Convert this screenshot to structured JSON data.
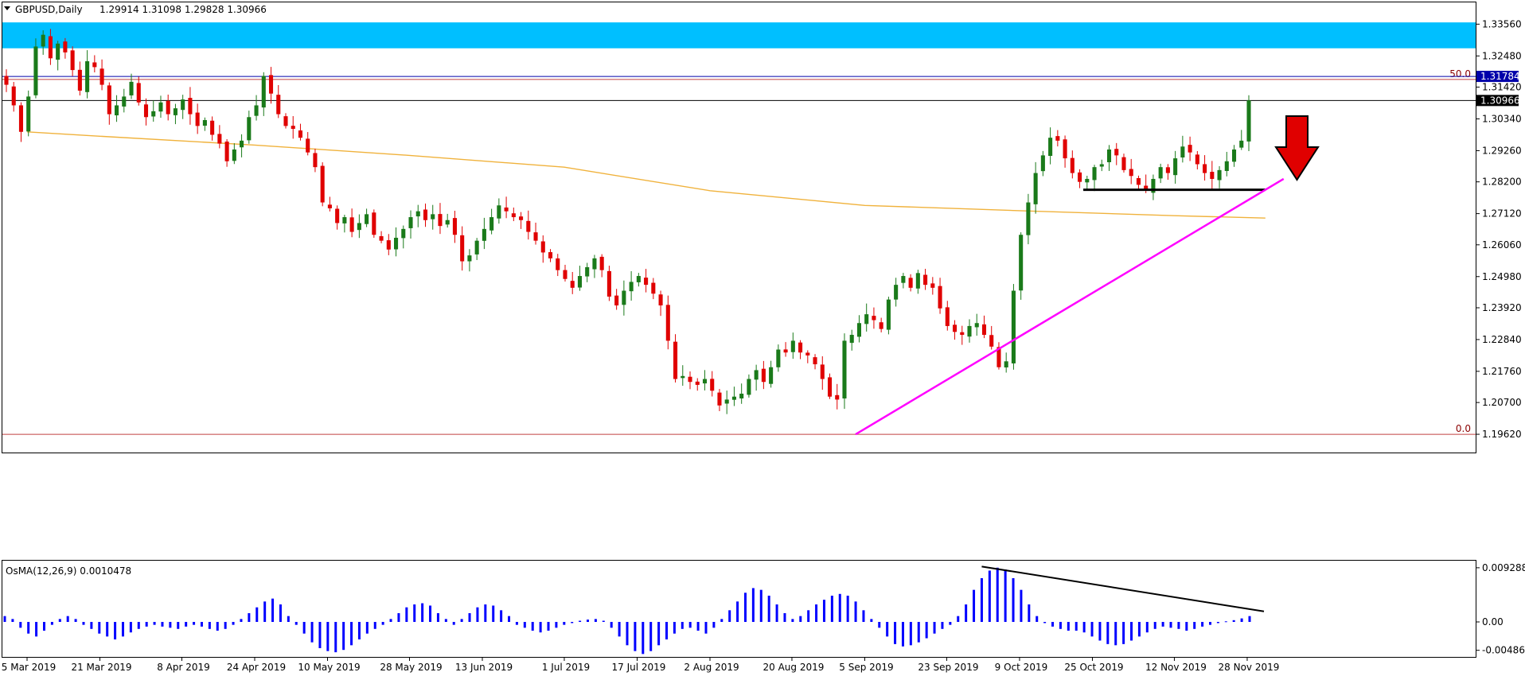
{
  "header": {
    "symbol": "GBPUSD,Daily",
    "ohlc": "1.29914 1.31098 1.29828 1.30966"
  },
  "osma": {
    "label": "OsMA(12,26,9) 0.0010478"
  },
  "colors": {
    "up": "#1a7a1a",
    "down": "#e00000",
    "ma": "#f0b23c",
    "zone": "#00bfff",
    "trend": "#ff00ff",
    "hist": "#0000ff"
  },
  "chart_data": [
    {
      "type": "candlestick",
      "title": "GBPUSD,Daily",
      "y_ticks": [
        "1.33560",
        "1.32480",
        "1.31420",
        "1.30340",
        "1.29260",
        "1.28200",
        "1.27120",
        "1.26060",
        "1.24980",
        "1.23920",
        "1.22840",
        "1.21760",
        "1.20700",
        "1.19620"
      ],
      "x_ticks": [
        "5 Mar 2019",
        "21 Mar 2019",
        "8 Apr 2019",
        "24 Apr 2019",
        "10 May 2019",
        "28 May 2019",
        "13 Jun 2019",
        "1 Jul 2019",
        "17 Jul 2019",
        "2 Aug 2019",
        "20 Aug 2019",
        "5 Sep 2019",
        "23 Sep 2019",
        "9 Oct 2019",
        "25 Oct 2019",
        "12 Nov 2019",
        "28 Nov 2019"
      ],
      "ylim": [
        1.19,
        1.343
      ],
      "price_tags": [
        {
          "value": 1.31784,
          "label": "1.31784",
          "color": "#0000aa"
        },
        {
          "value": 1.30966,
          "label": "1.30966",
          "color": "#000000"
        }
      ],
      "fib_levels": [
        {
          "label": "50.0",
          "value": 1.3168
        },
        {
          "label": "0.0",
          "value": 1.1962
        }
      ],
      "resistance_zone": [
        1.3274,
        1.3362
      ],
      "support_line": {
        "value": 1.2793,
        "from": "23 Oct 2019",
        "to": "2 Dec 2019"
      },
      "trendline": {
        "from": {
          "date": "3 Sep 2019",
          "value": 1.1962
        },
        "to": {
          "date": "6 Dec 2019",
          "value": 1.283
        }
      },
      "moving_average": [
        {
          "date": "5 Mar 2019",
          "value": 1.299
        },
        {
          "date": "21 Mar 2019",
          "value": 1.2975
        },
        {
          "date": "24 Apr 2019",
          "value": 1.2945
        },
        {
          "date": "28 May 2019",
          "value": 1.291
        },
        {
          "date": "1 Jul 2019",
          "value": 1.287
        },
        {
          "date": "2 Aug 2019",
          "value": 1.279
        },
        {
          "date": "5 Sep 2019",
          "value": 1.274
        },
        {
          "date": "9 Oct 2019",
          "value": 1.2722
        },
        {
          "date": "12 Nov 2019",
          "value": 1.2705
        },
        {
          "date": "2 Dec 2019",
          "value": 1.2697
        }
      ],
      "close_series": [
        1.315,
        1.308,
        1.299,
        1.311,
        1.328,
        1.332,
        1.324,
        1.329,
        1.326,
        1.32,
        1.313,
        1.323,
        1.321,
        1.315,
        1.305,
        1.308,
        1.311,
        1.316,
        1.309,
        1.304,
        1.306,
        1.309,
        1.305,
        1.307,
        1.31,
        1.305,
        1.301,
        1.303,
        1.298,
        1.295,
        1.289,
        1.293,
        1.296,
        1.304,
        1.308,
        1.318,
        1.312,
        1.305,
        1.301,
        1.3,
        1.297,
        1.292,
        1.287,
        1.275,
        1.273,
        1.268,
        1.27,
        1.265,
        1.268,
        1.271,
        1.264,
        1.262,
        1.259,
        1.263,
        1.266,
        1.27,
        1.272,
        1.269,
        1.271,
        1.267,
        1.269,
        1.264,
        1.255,
        1.257,
        1.262,
        1.266,
        1.27,
        1.274,
        1.272,
        1.27,
        1.269,
        1.265,
        1.262,
        1.258,
        1.256,
        1.252,
        1.249,
        1.246,
        1.25,
        1.253,
        1.256,
        1.252,
        1.243,
        1.24,
        1.245,
        1.248,
        1.25,
        1.247,
        1.244,
        1.24,
        1.228,
        1.215,
        1.216,
        1.214,
        1.213,
        1.215,
        1.211,
        1.206,
        1.208,
        1.209,
        1.21,
        1.215,
        1.218,
        1.214,
        1.219,
        1.225,
        1.224,
        1.228,
        1.224,
        1.223,
        1.22,
        1.215,
        1.209,
        1.208,
        1.228,
        1.23,
        1.234,
        1.237,
        1.235,
        1.232,
        1.242,
        1.247,
        1.25,
        1.246,
        1.251,
        1.247,
        1.246,
        1.239,
        1.233,
        1.231,
        1.23,
        1.233,
        1.234,
        1.23,
        1.226,
        1.219,
        1.221,
        1.245,
        1.264,
        1.275,
        1.285,
        1.291,
        1.297,
        1.296,
        1.29,
        1.285,
        1.282,
        1.283,
        1.287,
        1.288,
        1.293,
        1.291,
        1.286,
        1.284,
        1.281,
        1.279,
        1.283,
        1.287,
        1.285,
        1.29,
        1.294,
        1.292,
        1.288,
        1.285,
        1.283,
        1.286,
        1.289,
        1.293,
        1.296,
        1.3097
      ]
    },
    {
      "type": "bar",
      "title": "OsMA(12,26,9) 0.0010478",
      "y_ticks": [
        "0.009288",
        "0.00",
        "-0.004864"
      ],
      "ylim": [
        -0.006,
        0.0105
      ],
      "values": [
        0.001,
        0.0005,
        -0.001,
        -0.002,
        -0.0025,
        -0.0015,
        -0.0005,
        0.0005,
        0.001,
        0.0005,
        -0.0005,
        -0.0012,
        -0.002,
        -0.0025,
        -0.003,
        -0.0025,
        -0.0018,
        -0.0012,
        -0.0008,
        -0.0005,
        -0.0008,
        -0.001,
        -0.0012,
        -0.0008,
        -0.0005,
        -0.0008,
        -0.0012,
        -0.0015,
        -0.0012,
        -0.0005,
        0.0005,
        0.0015,
        0.0025,
        0.0035,
        0.004,
        0.003,
        0.001,
        -0.0005,
        -0.002,
        -0.0035,
        -0.0045,
        -0.005,
        -0.0052,
        -0.0048,
        -0.004,
        -0.003,
        -0.002,
        -0.0012,
        -0.0005,
        0.0005,
        0.0015,
        0.0025,
        0.003,
        0.0032,
        0.0028,
        0.0015,
        0.0005,
        -0.0005,
        0.0005,
        0.0015,
        0.0025,
        0.003,
        0.0028,
        0.002,
        0.001,
        -0.0005,
        -0.001,
        -0.0015,
        -0.0018,
        -0.0015,
        -0.001,
        -0.0005,
        -0.0002,
        0.0002,
        0.0004,
        0.0005,
        0.0002,
        -0.001,
        -0.0025,
        -0.004,
        -0.005,
        -0.0055,
        -0.005,
        -0.004,
        -0.003,
        -0.002,
        -0.0012,
        -0.001,
        -0.0015,
        -0.002,
        -0.001,
        0.0005,
        0.002,
        0.0035,
        0.005,
        0.0058,
        0.0055,
        0.0045,
        0.003,
        0.0015,
        0.0005,
        0.001,
        0.002,
        0.003,
        0.0038,
        0.0045,
        0.0048,
        0.0045,
        0.0035,
        0.002,
        0.0005,
        -0.001,
        -0.0025,
        -0.0038,
        -0.0042,
        -0.004,
        -0.0035,
        -0.0028,
        -0.002,
        -0.0012,
        -0.0005,
        0.001,
        0.003,
        0.0055,
        0.0075,
        0.0088,
        0.0093,
        0.009,
        0.0075,
        0.0055,
        0.003,
        0.001,
        -0.0002,
        -0.0008,
        -0.0012,
        -0.0015,
        -0.0015,
        -0.0018,
        -0.0025,
        -0.0032,
        -0.0038,
        -0.004,
        -0.0038,
        -0.0032,
        -0.0025,
        -0.0018,
        -0.0012,
        -0.0008,
        -0.001,
        -0.0012,
        -0.0015,
        -0.0012,
        -0.0008,
        -0.0005,
        -0.0002,
        0.0001,
        0.0003,
        0.0006,
        0.001
      ],
      "divergence_line": {
        "from": {
          "bar": 124,
          "value": 0.0095
        },
        "to": {
          "bar": 158,
          "value": 0.0018
        }
      }
    }
  ]
}
